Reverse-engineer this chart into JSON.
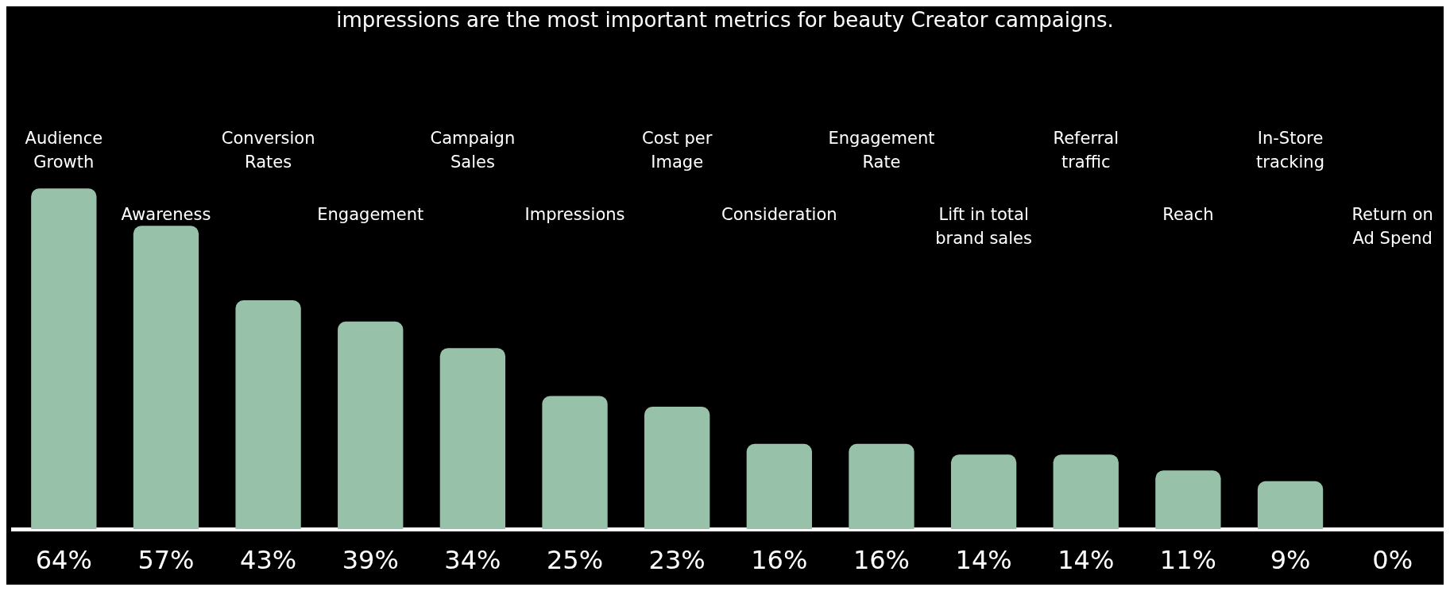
{
  "chart_data": {
    "type": "bar",
    "title": "impressions are the most important metrics for beauty Creator campaigns.",
    "categories": [
      "Audience Growth",
      "Awareness",
      "Conversion Rates",
      "Engagement",
      "Campaign Sales",
      "Impressions",
      "Cost per Image",
      "Consideration",
      "Engagement Rate",
      "Lift in total brand sales",
      "Referral traffic",
      "Reach",
      "In-Store tracking",
      "Return on Ad Spend"
    ],
    "values": [
      64,
      57,
      43,
      39,
      34,
      25,
      23,
      16,
      16,
      14,
      14,
      11,
      9,
      0
    ],
    "value_labels": [
      "64%",
      "57%",
      "43%",
      "39%",
      "34%",
      "25%",
      "23%",
      "16%",
      "16%",
      "14%",
      "14%",
      "11%",
      "9%",
      "0%"
    ],
    "color": "#97c1a9",
    "grid": false,
    "legend": false
  }
}
